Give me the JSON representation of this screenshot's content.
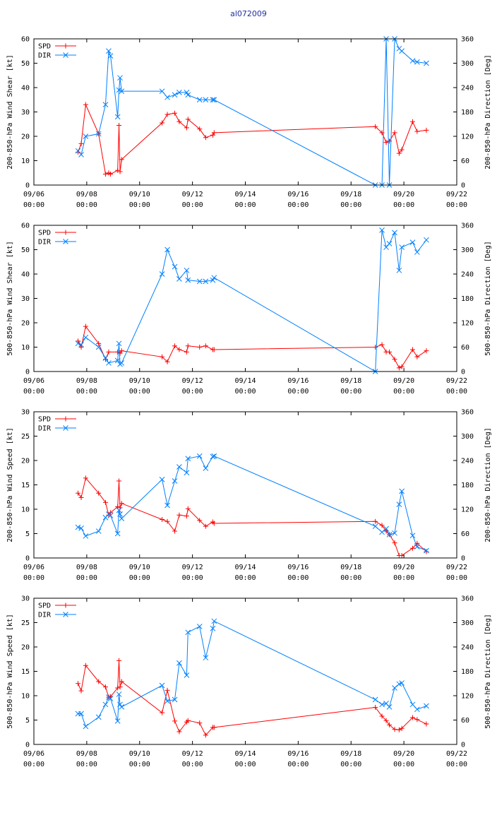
{
  "title": "al072009",
  "colors": {
    "spd": "#ff0000",
    "dir": "#0080ff"
  },
  "chart_data": [
    {
      "type": "line",
      "ylabel_left": "200-850-hPa Wind Shear [kt]",
      "ylabel_right": "200-850-hPa Direction [Deg]",
      "ylim_left": [
        0,
        60
      ],
      "yticks_left": [
        0,
        10,
        20,
        30,
        40,
        50,
        60
      ],
      "ylim_right": [
        0,
        360
      ],
      "yticks_right": [
        0,
        60,
        120,
        180,
        240,
        300,
        360
      ],
      "xlim": [
        0,
        16
      ],
      "xticks": [
        0,
        2,
        4,
        6,
        8,
        10,
        12,
        14,
        16
      ],
      "xtick_labels": [
        "09/06",
        "09/08",
        "09/10",
        "09/12",
        "09/14",
        "09/16",
        "09/18",
        "09/20",
        "09/22"
      ],
      "xtick_sublabel": "00:00",
      "legend": [
        "SPD",
        "DIR"
      ],
      "series": [
        {
          "name": "SPD",
          "axis": "left",
          "x": [
            1.67,
            1.79,
            1.96,
            2.45,
            2.71,
            2.83,
            2.9,
            3.17,
            3.22,
            3.26,
            3.32,
            4.85,
            5.05,
            5.33,
            5.5,
            5.78,
            5.83,
            6.27,
            6.5,
            6.77,
            6.82,
            12.92,
            13.17,
            13.33,
            13.45,
            13.65,
            13.82,
            13.92,
            14.33,
            14.5,
            14.85
          ],
          "y": [
            13.5,
            17,
            33,
            21,
            4.5,
            5,
            4.5,
            6,
            24.5,
            5.5,
            10.5,
            25.5,
            29,
            29.5,
            26,
            23.5,
            27,
            23,
            19.5,
            20.5,
            21.5,
            24,
            21.5,
            17.5,
            18,
            21.5,
            13,
            14.5,
            26,
            22,
            22.5
          ]
        },
        {
          "name": "DIR",
          "axis": "left",
          "x": [
            1.67,
            1.79,
            1.96,
            2.45,
            2.71,
            2.83,
            2.9,
            3.17,
            3.22,
            3.26,
            3.32,
            4.85,
            5.05,
            5.33,
            5.5,
            5.78,
            5.83,
            6.27,
            6.5,
            6.77,
            6.82,
            12.92,
            13.17,
            13.33,
            13.45,
            13.65,
            13.82,
            13.92,
            14.33,
            14.5,
            14.85
          ],
          "y": [
            14,
            12.5,
            20,
            21,
            33,
            55,
            53,
            28,
            39,
            44,
            38.5,
            38.5,
            36,
            37,
            38,
            38,
            37,
            35,
            35,
            35,
            35,
            0,
            0,
            60,
            0,
            60,
            56,
            55,
            51,
            50.5,
            50
          ]
        }
      ]
    },
    {
      "type": "line",
      "ylabel_left": "500-850-hPa Wind Shear [kt]",
      "ylabel_right": "500-850-hPa Direction [Deg]",
      "ylim_left": [
        0,
        60
      ],
      "yticks_left": [
        0,
        10,
        20,
        30,
        40,
        50,
        60
      ],
      "ylim_right": [
        0,
        360
      ],
      "yticks_right": [
        0,
        60,
        120,
        180,
        240,
        300,
        360
      ],
      "xlim": [
        0,
        16
      ],
      "xticks": [
        0,
        2,
        4,
        6,
        8,
        10,
        12,
        14,
        16
      ],
      "xtick_labels": [
        "09/06",
        "09/08",
        "09/10",
        "09/12",
        "09/14",
        "09/16",
        "09/18",
        "09/20",
        "09/22"
      ],
      "xtick_sublabel": "00:00",
      "legend": [
        "SPD",
        "DIR"
      ],
      "series": [
        {
          "name": "SPD",
          "axis": "left",
          "x": [
            1.67,
            1.79,
            1.96,
            2.45,
            2.71,
            2.83,
            3.17,
            3.26,
            3.32,
            4.85,
            5.05,
            5.33,
            5.5,
            5.78,
            5.83,
            6.27,
            6.5,
            6.77,
            6.82,
            12.92,
            13.17,
            13.33,
            13.45,
            13.65,
            13.82,
            13.92,
            14.33,
            14.5,
            14.85
          ],
          "y": [
            12.5,
            10,
            18.5,
            11.5,
            5,
            8,
            8,
            7.5,
            8.5,
            6,
            4,
            10.5,
            9,
            8,
            10.5,
            10,
            10.5,
            9,
            9,
            10,
            11,
            8,
            8,
            5,
            1.5,
            2,
            9,
            6,
            8.5
          ]
        },
        {
          "name": "DIR",
          "axis": "left",
          "x": [
            1.67,
            1.79,
            1.96,
            2.45,
            2.71,
            2.83,
            3.17,
            3.22,
            3.26,
            3.32,
            4.85,
            5.05,
            5.33,
            5.5,
            5.78,
            5.83,
            6.27,
            6.5,
            6.77,
            6.82,
            12.92,
            13.17,
            13.33,
            13.45,
            13.65,
            13.82,
            13.92,
            14.33,
            14.5,
            14.85
          ],
          "y": [
            11.5,
            11,
            14,
            10,
            5.5,
            3.5,
            4.5,
            11.5,
            3,
            3.5,
            40,
            50,
            43,
            38,
            41.5,
            37.5,
            37,
            37,
            37.5,
            38.5,
            0,
            58,
            51,
            52.5,
            57,
            41.5,
            51,
            53,
            49,
            54
          ]
        }
      ]
    },
    {
      "type": "line",
      "ylabel_left": "200-850-hPa Wind Speed [kt]",
      "ylabel_right": "200-850-hPa Direction [Deg]",
      "ylim_left": [
        0,
        30
      ],
      "yticks_left": [
        0,
        5,
        10,
        15,
        20,
        25,
        30
      ],
      "ylim_right": [
        0,
        360
      ],
      "yticks_right": [
        0,
        60,
        120,
        180,
        240,
        300,
        360
      ],
      "xlim": [
        0,
        16
      ],
      "xticks": [
        0,
        2,
        4,
        6,
        8,
        10,
        12,
        14,
        16
      ],
      "xtick_labels": [
        "09/06",
        "09/08",
        "09/10",
        "09/12",
        "09/14",
        "09/16",
        "09/18",
        "09/20",
        "09/22"
      ],
      "xtick_sublabel": "00:00",
      "legend": [
        "SPD",
        "DIR"
      ],
      "series": [
        {
          "name": "SPD",
          "axis": "left",
          "x": [
            1.67,
            1.79,
            1.96,
            2.45,
            2.71,
            2.83,
            2.9,
            3.17,
            3.22,
            3.26,
            3.32,
            4.85,
            5.05,
            5.33,
            5.5,
            5.78,
            5.83,
            6.27,
            6.5,
            6.77,
            6.82,
            12.92,
            13.17,
            13.33,
            13.45,
            13.65,
            13.82,
            13.92,
            14.33,
            14.5,
            14.85
          ],
          "y": [
            13.3,
            12.4,
            16.4,
            13.3,
            11.4,
            8.8,
            9.3,
            10.5,
            15.8,
            10.3,
            11.2,
            7.9,
            7.5,
            5.5,
            8.8,
            8.6,
            10.1,
            7.7,
            6.5,
            7.4,
            7.1,
            7.5,
            6.7,
            5.5,
            4.8,
            3.1,
            0.5,
            0.5,
            2,
            3,
            1.3
          ]
        },
        {
          "name": "DIR",
          "axis": "left",
          "x": [
            1.67,
            1.79,
            1.96,
            2.45,
            2.71,
            2.83,
            2.9,
            3.17,
            3.22,
            3.26,
            3.32,
            4.85,
            5.05,
            5.33,
            5.5,
            5.78,
            5.83,
            6.27,
            6.5,
            6.77,
            6.82,
            12.92,
            13.17,
            13.33,
            13.45,
            13.65,
            13.82,
            13.92,
            14.33,
            14.5,
            14.85
          ],
          "y": [
            6.3,
            6.1,
            4.5,
            5.5,
            8.3,
            9,
            8.7,
            5,
            9.8,
            9,
            8.1,
            16.1,
            10.8,
            15.8,
            18.7,
            17.5,
            20.4,
            20.9,
            18.4,
            20.8,
            20.9,
            6.5,
            5.3,
            6,
            4.8,
            5.1,
            11,
            13.7,
            4.6,
            2.3,
            1.5
          ]
        }
      ]
    },
    {
      "type": "line",
      "ylabel_left": "500-850-hPa Wind Speed [kt]",
      "ylabel_right": "500-850-hPa Direction [Deg]",
      "ylim_left": [
        0,
        30
      ],
      "yticks_left": [
        0,
        5,
        10,
        15,
        20,
        25,
        30
      ],
      "ylim_right": [
        0,
        360
      ],
      "yticks_right": [
        0,
        60,
        120,
        180,
        240,
        300,
        360
      ],
      "xlim": [
        0,
        16
      ],
      "xticks": [
        0,
        2,
        4,
        6,
        8,
        10,
        12,
        14,
        16
      ],
      "xtick_labels": [
        "09/06",
        "09/08",
        "09/10",
        "09/12",
        "09/14",
        "09/16",
        "09/18",
        "09/20",
        "09/22"
      ],
      "xtick_sublabel": "00:00",
      "legend": [
        "SPD",
        "DIR"
      ],
      "series": [
        {
          "name": "SPD",
          "axis": "left",
          "x": [
            1.67,
            1.79,
            1.96,
            2.45,
            2.71,
            2.83,
            2.9,
            3.17,
            3.22,
            3.26,
            3.32,
            4.85,
            5.05,
            5.33,
            5.5,
            5.78,
            5.83,
            6.27,
            6.5,
            6.77,
            6.82,
            12.92,
            13.17,
            13.33,
            13.45,
            13.65,
            13.82,
            13.92,
            14.33,
            14.5,
            14.85
          ],
          "y": [
            12.5,
            11,
            16.2,
            12.9,
            11.8,
            9.7,
            9.8,
            11.6,
            17.2,
            11.8,
            12.9,
            6.5,
            11.1,
            4.8,
            2.6,
            4.6,
            4.9,
            4.4,
            1.9,
            3.5,
            3.5,
            7.6,
            5.8,
            4.9,
            4,
            3.1,
            3,
            3.3,
            5.5,
            5.1,
            4.2
          ]
        },
        {
          "name": "DIR",
          "axis": "left",
          "x": [
            1.67,
            1.79,
            1.96,
            2.45,
            2.71,
            2.83,
            2.9,
            3.17,
            3.22,
            3.26,
            3.32,
            4.85,
            5.05,
            5.33,
            5.5,
            5.78,
            5.83,
            6.27,
            6.5,
            6.77,
            6.82,
            12.92,
            13.17,
            13.33,
            13.45,
            13.65,
            13.82,
            13.92,
            14.33,
            14.5,
            14.85
          ],
          "y": [
            6.3,
            6.3,
            3.7,
            5.6,
            8.2,
            9.7,
            9.4,
            4.8,
            10.3,
            8.2,
            7.7,
            12.1,
            8.9,
            9.2,
            16.7,
            14.2,
            23,
            24.2,
            17.8,
            23.8,
            25.3,
            9.2,
            8.2,
            8.4,
            7.7,
            11.6,
            12.4,
            12.6,
            8.2,
            7.2,
            7.9
          ]
        }
      ]
    }
  ]
}
